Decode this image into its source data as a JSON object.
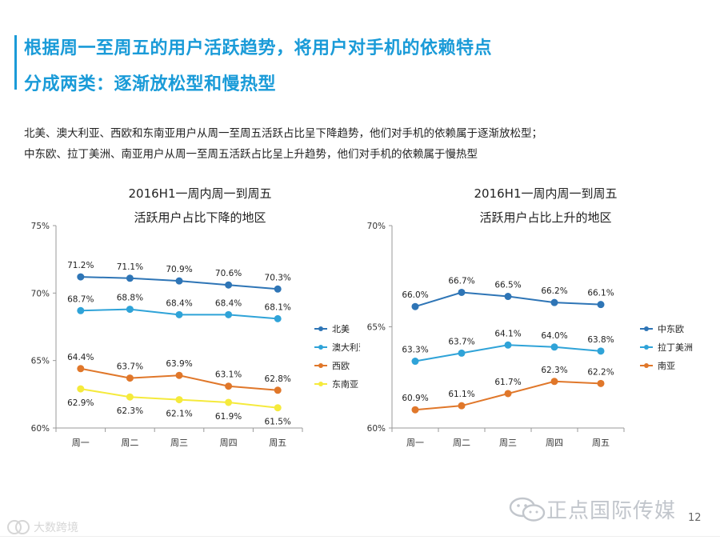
{
  "header": {
    "title_line1": "根据周一至周五的用户活跃趋势，将用户对手机的依赖特点",
    "title_line2": "分成两类：逐渐放松型和慢热型",
    "accent_color": "#1a9bd8"
  },
  "summary": {
    "line1": "北美、澳大利亚、西欧和东南亚用户从周一至周五活跃占比呈下降趋势，他们对手机的依赖属于逐渐放松型；",
    "line2": "中东欧、拉丁美洲、南亚用户从周一至周五活跃占比呈上升趋势，他们对手机的依赖属于慢热型"
  },
  "footer": {
    "brand": "正点国际传媒",
    "page_number": "12",
    "watermark": "大数跨境"
  },
  "chart_data": [
    {
      "type": "line",
      "title": [
        "2016H1一周内周一到周五",
        "活跃用户占比下降的地区"
      ],
      "categories": [
        "周一",
        "周二",
        "周三",
        "周四",
        "周五"
      ],
      "ylim": [
        60,
        75
      ],
      "yticks": [
        "60%",
        "65%",
        "70%",
        "75%"
      ],
      "ytick_values": [
        60,
        65,
        70,
        75
      ],
      "legend_position": "right",
      "series": [
        {
          "name": "北美",
          "color": "#2e75b6",
          "values": [
            71.2,
            71.1,
            70.9,
            70.6,
            70.3
          ],
          "labels": [
            "71.2%",
            "71.1%",
            "70.9%",
            "70.6%",
            "70.3%"
          ],
          "label_side": "above"
        },
        {
          "name": "澳大利亚",
          "color": "#2fa3d8",
          "values": [
            68.7,
            68.8,
            68.4,
            68.4,
            68.1
          ],
          "labels": [
            "68.7%",
            "68.8%",
            "68.4%",
            "68.4%",
            "68.1%"
          ],
          "label_side": "above"
        },
        {
          "name": "西欧",
          "color": "#e0772a",
          "values": [
            64.4,
            63.7,
            63.9,
            63.1,
            62.8
          ],
          "labels": [
            "64.4%",
            "63.7%",
            "63.9%",
            "63.1%",
            "62.8%"
          ],
          "label_side": "above"
        },
        {
          "name": "东南亚",
          "color": "#f5ea3c",
          "values": [
            62.9,
            62.3,
            62.1,
            61.9,
            61.5
          ],
          "labels": [
            "62.9%",
            "62.3%",
            "62.1%",
            "61.9%",
            "61.5%"
          ],
          "label_side": "below"
        }
      ]
    },
    {
      "type": "line",
      "title": [
        "2016H1一周内周一到周五",
        "活跃用户占比上升的地区"
      ],
      "categories": [
        "周一",
        "周二",
        "周三",
        "周四",
        "周五"
      ],
      "ylim": [
        60,
        70
      ],
      "yticks": [
        "60%",
        "65%",
        "70%"
      ],
      "ytick_values": [
        60,
        65,
        70
      ],
      "legend_position": "right",
      "series": [
        {
          "name": "中东欧",
          "color": "#2e75b6",
          "values": [
            66.0,
            66.7,
            66.5,
            66.2,
            66.1
          ],
          "labels": [
            "66.0%",
            "66.7%",
            "66.5%",
            "66.2%",
            "66.1%"
          ],
          "label_side": "above"
        },
        {
          "name": "拉丁美洲",
          "color": "#2fa3d8",
          "values": [
            63.3,
            63.7,
            64.1,
            64.0,
            63.8
          ],
          "labels": [
            "63.3%",
            "63.7%",
            "64.1%",
            "64.0%",
            "63.8%"
          ],
          "label_side": "above"
        },
        {
          "name": "南亚",
          "color": "#e0772a",
          "values": [
            60.9,
            61.1,
            61.7,
            62.3,
            62.2
          ],
          "labels": [
            "60.9%",
            "61.1%",
            "61.7%",
            "62.3%",
            "62.2%"
          ],
          "label_side": "above"
        }
      ]
    }
  ]
}
